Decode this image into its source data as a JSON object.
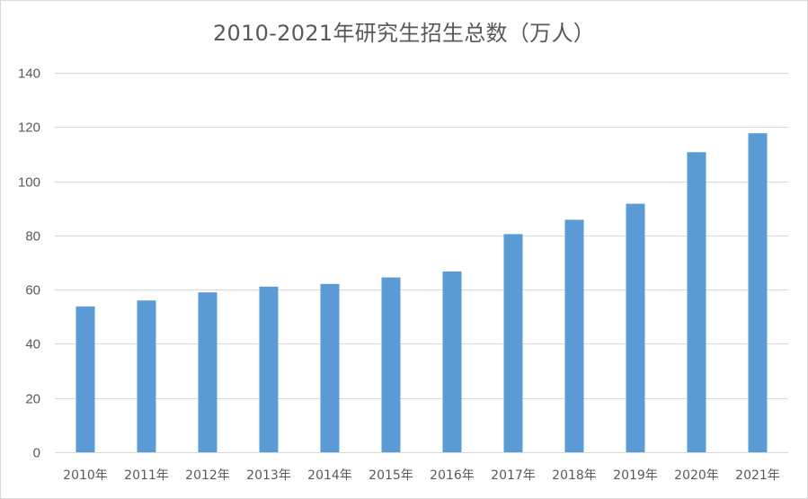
{
  "chart_data": {
    "type": "bar",
    "title": "2010-2021年研究生招生总数（万人）",
    "categories": [
      "2010年",
      "2011年",
      "2012年",
      "2013年",
      "2014年",
      "2015年",
      "2016年",
      "2017年",
      "2018年",
      "2019年",
      "2020年",
      "2021年"
    ],
    "values": [
      53.8,
      56.0,
      59.0,
      61.1,
      62.1,
      64.5,
      66.7,
      80.5,
      85.8,
      91.7,
      110.7,
      117.7
    ],
    "ylim": [
      0,
      140
    ],
    "yticks": [
      0,
      20,
      40,
      60,
      80,
      100,
      120,
      140
    ],
    "grid": true,
    "legend": "none",
    "bar_color": "#5b9bd5"
  }
}
